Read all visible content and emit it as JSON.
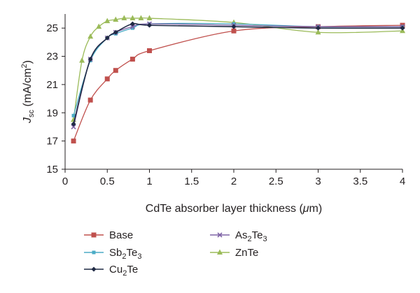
{
  "chart_data": {
    "type": "line",
    "title": "",
    "xlabel": {
      "text": "CdTe absorber layer thickness (",
      "mu": "μ",
      "tail": "m)"
    },
    "ylabel": {
      "j": "J",
      "sub": "sc",
      "unit": "(mA/cm",
      "sup": "2",
      "close": ")"
    },
    "xlim": [
      0,
      4
    ],
    "ylim": [
      15,
      26
    ],
    "xticks": [
      "0",
      "0.5",
      "1",
      "1.5",
      "2",
      "2.5",
      "3",
      "3.5",
      "4"
    ],
    "yticks": [
      "15",
      "17",
      "19",
      "21",
      "23",
      "25"
    ],
    "grid": false,
    "legend_position": "bottom",
    "series": [
      {
        "name": {
          "main": "Base",
          "sub": ""
        },
        "color": "#c0504d",
        "marker": "square",
        "x": [
          0.1,
          0.3,
          0.5,
          0.6,
          0.8,
          1,
          2,
          3,
          4
        ],
        "y": [
          17.0,
          19.9,
          21.4,
          22.0,
          22.8,
          23.4,
          24.8,
          25.1,
          25.2
        ]
      },
      {
        "name": {
          "main": "As",
          "sub": "2",
          "rest": "Te",
          "sub2": "3"
        },
        "color": "#7f63a6",
        "marker": "x",
        "x": [
          0.1,
          0.3,
          0.5,
          0.6,
          0.8,
          1,
          2,
          3,
          4
        ],
        "y": [
          18.0,
          22.8,
          24.3,
          24.7,
          25.1,
          25.3,
          25.2,
          25.1,
          25.1
        ]
      },
      {
        "name": {
          "main": "Sb",
          "sub": "2",
          "rest": "Te",
          "sub2": "3"
        },
        "color": "#4bacc6",
        "marker": "square-small",
        "x": [
          0.1,
          0.3,
          0.5,
          0.6,
          0.8,
          1,
          2,
          3,
          4
        ],
        "y": [
          18.8,
          22.7,
          24.3,
          24.6,
          25.0,
          25.3,
          25.3,
          25.1,
          25.1
        ]
      },
      {
        "name": {
          "main": "ZnTe",
          "sub": ""
        },
        "color": "#9bbb59",
        "marker": "triangle",
        "x": [
          0.1,
          0.2,
          0.3,
          0.4,
          0.5,
          0.6,
          0.7,
          0.8,
          0.9,
          1,
          2,
          3,
          4
        ],
        "y": [
          18.5,
          22.7,
          24.4,
          25.1,
          25.5,
          25.6,
          25.7,
          25.7,
          25.7,
          25.7,
          25.4,
          24.7,
          24.8
        ]
      },
      {
        "name": {
          "main": "Cu",
          "sub": "2",
          "rest": "Te"
        },
        "color": "#1f2a44",
        "marker": "diamond",
        "x": [
          0.1,
          0.3,
          0.5,
          0.6,
          0.8,
          1,
          2,
          3,
          4
        ],
        "y": [
          18.2,
          22.8,
          24.3,
          24.7,
          25.3,
          25.2,
          25.1,
          25.0,
          25.0
        ]
      }
    ]
  }
}
